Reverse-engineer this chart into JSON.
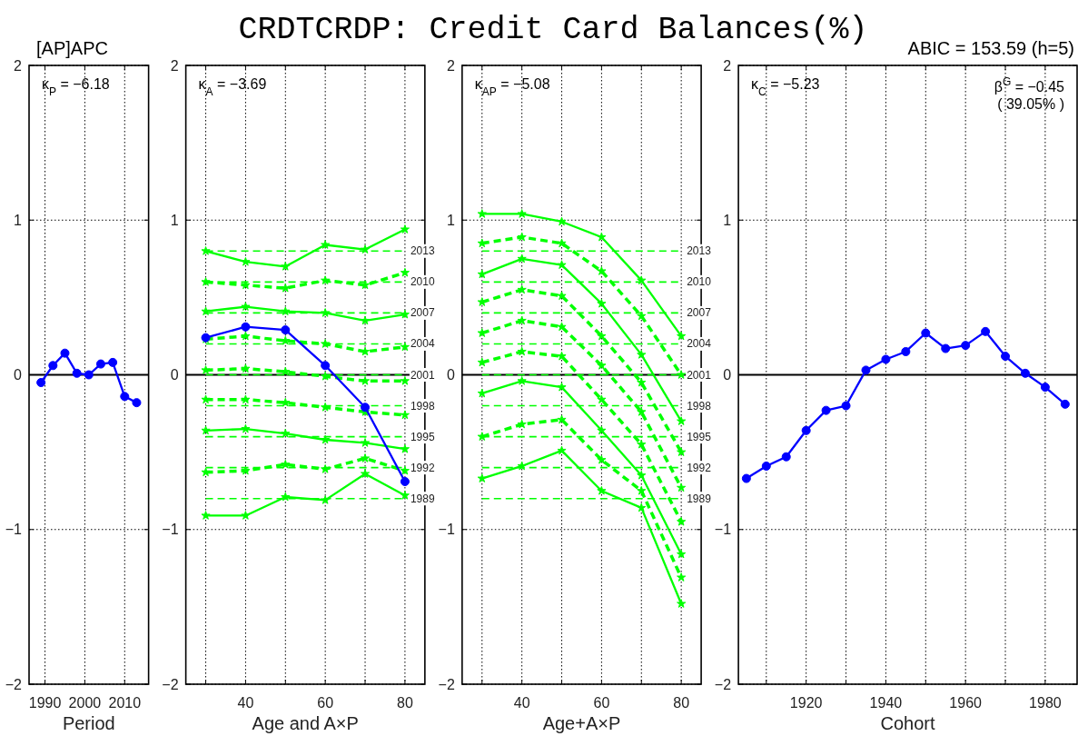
{
  "chart_data": [
    {
      "type": "line",
      "subtitle": "[AP]APC",
      "xlabel": "Period",
      "x": [
        1989,
        1992,
        1995,
        1998,
        2001,
        2004,
        2007,
        2010,
        2013
      ],
      "series": [
        {
          "color": "#0000ff",
          "values": [
            -0.05,
            0.06,
            0.14,
            0.01,
            0,
            0.07,
            0.08,
            -0.14,
            -0.18
          ]
        }
      ],
      "marker": "circle",
      "xlim": [
        1986,
        2016
      ],
      "ylim": [
        -2,
        2
      ],
      "xticks": [
        1990,
        2000,
        2010
      ],
      "yticks": [
        -2,
        -1,
        0,
        1,
        2
      ],
      "grid": true,
      "annotations": [
        "κ$_{P}$ = −6.18"
      ],
      "ref_lines": [
        {
          "axis": "y",
          "value": 0,
          "color": "#000000",
          "line_style": "solid"
        }
      ]
    },
    {
      "type": "line",
      "xlabel": "Age and A×P",
      "x": [
        30,
        40,
        50,
        60,
        70,
        80
      ],
      "series": [
        {
          "name": "2013",
          "color": "#00ff00",
          "line_style": "dashed",
          "values": [
            0.8,
            0.8,
            0.8,
            0.8,
            0.8,
            0.8
          ]
        },
        {
          "name": "2010",
          "color": "#00ff00",
          "line_style": "dashed",
          "values": [
            0.6,
            0.6,
            0.6,
            0.6,
            0.6,
            0.6
          ]
        },
        {
          "name": "2007",
          "color": "#00ff00",
          "line_style": "dashed",
          "values": [
            0.4,
            0.4,
            0.4,
            0.4,
            0.4,
            0.4
          ]
        },
        {
          "name": "2004",
          "color": "#00ff00",
          "line_style": "dashed",
          "values": [
            0.2,
            0.2,
            0.2,
            0.2,
            0.2,
            0.2
          ]
        },
        {
          "name": "2001",
          "color": "#00ff00",
          "line_style": "dashed",
          "values": [
            0,
            0,
            0,
            0,
            0,
            0
          ]
        },
        {
          "name": "1998",
          "color": "#00ff00",
          "line_style": "dashed",
          "values": [
            -0.2,
            -0.2,
            -0.2,
            -0.2,
            -0.2,
            -0.2
          ]
        },
        {
          "name": "1995",
          "color": "#00ff00",
          "line_style": "dashed",
          "values": [
            -0.4,
            -0.4,
            -0.4,
            -0.4,
            -0.4,
            -0.4
          ]
        },
        {
          "name": "1992",
          "color": "#00ff00",
          "line_style": "dashed",
          "values": [
            -0.6,
            -0.6,
            -0.6,
            -0.6,
            -0.6,
            -0.6
          ]
        },
        {
          "name": "1989",
          "color": "#00ff00",
          "line_style": "dashed",
          "values": [
            -0.8,
            -0.8,
            -0.8,
            -0.8,
            -0.8,
            -0.8
          ]
        },
        {
          "color": "#00ff00",
          "line_style": "solid",
          "marker": "star",
          "values": [
            0.8,
            0.73,
            0.7,
            0.84,
            0.81,
            0.94
          ]
        },
        {
          "color": "#00ff00",
          "line_style": "dashed",
          "marker": "star",
          "values": [
            0.6,
            0.58,
            0.56,
            0.61,
            0.58,
            0.66
          ]
        },
        {
          "color": "#00ff00",
          "line_style": "solid",
          "marker": "star",
          "values": [
            0.41,
            0.44,
            0.41,
            0.4,
            0.35,
            0.39
          ]
        },
        {
          "color": "#00ff00",
          "line_style": "dashed",
          "marker": "star",
          "values": [
            0.23,
            0.25,
            0.22,
            0.2,
            0.15,
            0.18
          ]
        },
        {
          "color": "#00ff00",
          "line_style": "dashed",
          "marker": "star",
          "values": [
            0.03,
            0.04,
            0.02,
            -0.01,
            -0.04,
            -0.04
          ]
        },
        {
          "color": "#00ff00",
          "line_style": "dashed",
          "marker": "star",
          "values": [
            -0.16,
            -0.16,
            -0.18,
            -0.21,
            -0.24,
            -0.26
          ]
        },
        {
          "color": "#00ff00",
          "line_style": "solid",
          "marker": "star",
          "values": [
            -0.36,
            -0.35,
            -0.38,
            -0.42,
            -0.44,
            -0.48
          ]
        },
        {
          "color": "#00ff00",
          "line_style": "dashed",
          "marker": "star",
          "values": [
            -0.63,
            -0.62,
            -0.58,
            -0.61,
            -0.54,
            -0.62
          ]
        },
        {
          "color": "#00ff00",
          "line_style": "solid",
          "marker": "star",
          "values": [
            -0.91,
            -0.91,
            -0.79,
            -0.81,
            -0.64,
            -0.78
          ]
        },
        {
          "color": "#0000ff",
          "line_style": "solid",
          "marker": "circle",
          "values": [
            0.24,
            0.31,
            0.29,
            0.06,
            -0.21,
            -0.69
          ]
        }
      ],
      "xlim": [
        25,
        85
      ],
      "ylim": [
        -2,
        2
      ],
      "xticks": [
        {
          "value": 30,
          "label": null
        },
        40,
        {
          "value": 50,
          "label": null
        },
        60,
        {
          "value": 70,
          "label": null
        },
        80
      ],
      "yticks": [
        -2,
        -1,
        0,
        1,
        2
      ],
      "grid": true,
      "annotations": [
        "κ$_{A}$ = −3.69"
      ],
      "ref_lines": [
        {
          "axis": "y",
          "value": 0,
          "color": "#000000",
          "line_style": "solid"
        }
      ]
    },
    {
      "type": "line",
      "title": "CRDTCRDP: Credit Card Balances(%)",
      "xlabel": "Age+A×P",
      "x": [
        30,
        40,
        50,
        60,
        70,
        80
      ],
      "series": [
        {
          "name": "2013",
          "color": "#00ff00",
          "line_style": "dashed",
          "values": [
            0.8,
            0.8,
            0.8,
            0.8,
            0.8,
            0.8
          ]
        },
        {
          "name": "2010",
          "color": "#00ff00",
          "line_style": "dashed",
          "values": [
            0.6,
            0.6,
            0.6,
            0.6,
            0.6,
            0.6
          ]
        },
        {
          "name": "2007",
          "color": "#00ff00",
          "line_style": "dashed",
          "values": [
            0.4,
            0.4,
            0.4,
            0.4,
            0.4,
            0.4
          ]
        },
        {
          "name": "2004",
          "color": "#00ff00",
          "line_style": "dashed",
          "values": [
            0.2,
            0.2,
            0.2,
            0.2,
            0.2,
            0.2
          ]
        },
        {
          "name": "2001",
          "color": "#00ff00",
          "line_style": "dashed",
          "values": [
            0,
            0,
            0,
            0,
            0,
            0
          ]
        },
        {
          "name": "1998",
          "color": "#00ff00",
          "line_style": "dashed",
          "values": [
            -0.2,
            -0.2,
            -0.2,
            -0.2,
            -0.2,
            -0.2
          ]
        },
        {
          "name": "1995",
          "color": "#00ff00",
          "line_style": "dashed",
          "values": [
            -0.4,
            -0.4,
            -0.4,
            -0.4,
            -0.4,
            -0.4
          ]
        },
        {
          "name": "1992",
          "color": "#00ff00",
          "line_style": "dashed",
          "values": [
            -0.6,
            -0.6,
            -0.6,
            -0.6,
            -0.6,
            -0.6
          ]
        },
        {
          "name": "1989",
          "color": "#00ff00",
          "line_style": "dashed",
          "values": [
            -0.8,
            -0.8,
            -0.8,
            -0.8,
            -0.8,
            -0.8
          ]
        },
        {
          "color": "#00ff00",
          "line_style": "solid",
          "marker": "star",
          "values": [
            1.04,
            1.04,
            0.99,
            0.89,
            0.61,
            0.25
          ]
        },
        {
          "color": "#00ff00",
          "line_style": "dashed",
          "marker": "star",
          "values": [
            0.85,
            0.89,
            0.85,
            0.67,
            0.38,
            0
          ]
        },
        {
          "color": "#00ff00",
          "line_style": "solid",
          "marker": "star",
          "values": [
            0.65,
            0.75,
            0.71,
            0.46,
            0.13,
            -0.3
          ]
        },
        {
          "color": "#00ff00",
          "line_style": "dashed",
          "marker": "star",
          "values": [
            0.47,
            0.55,
            0.51,
            0.25,
            -0.05,
            -0.5
          ]
        },
        {
          "color": "#00ff00",
          "line_style": "dashed",
          "marker": "star",
          "values": [
            0.27,
            0.35,
            0.31,
            0.06,
            -0.24,
            -0.73
          ]
        },
        {
          "color": "#00ff00",
          "line_style": "dashed",
          "marker": "star",
          "values": [
            0.08,
            0.15,
            0.12,
            -0.16,
            -0.45,
            -0.95
          ]
        },
        {
          "color": "#00ff00",
          "line_style": "solid",
          "marker": "star",
          "values": [
            -0.12,
            -0.04,
            -0.08,
            -0.36,
            -0.65,
            -1.16
          ]
        },
        {
          "color": "#00ff00",
          "line_style": "dashed",
          "marker": "star",
          "values": [
            -0.4,
            -0.32,
            -0.29,
            -0.55,
            -0.75,
            -1.31
          ]
        },
        {
          "color": "#00ff00",
          "line_style": "solid",
          "marker": "star",
          "values": [
            -0.67,
            -0.59,
            -0.49,
            -0.75,
            -0.86,
            -1.48
          ]
        }
      ],
      "xlim": [
        25,
        85
      ],
      "ylim": [
        -2,
        2
      ],
      "xticks": [
        {
          "value": 30,
          "label": null
        },
        40,
        {
          "value": 50,
          "label": null
        },
        60,
        {
          "value": 70,
          "label": null
        },
        80
      ],
      "yticks": [
        -2,
        -1,
        0,
        1,
        2
      ],
      "grid": true,
      "annotations": [
        "κ$_{AP}$ = −5.08"
      ],
      "ref_lines": [
        {
          "axis": "y",
          "value": 0,
          "color": "#000000",
          "line_style": "solid"
        }
      ]
    },
    {
      "type": "line",
      "subtitle": "ABIC = 153.59 (h=5)",
      "xlabel": "Cohort",
      "x": [
        1905,
        1910,
        1915,
        1920,
        1925,
        1930,
        1935,
        1940,
        1945,
        1950,
        1955,
        1960,
        1965,
        1970,
        1975,
        1980,
        1985
      ],
      "series": [
        {
          "color": "#0000ff",
          "values": [
            -0.67,
            -0.59,
            -0.53,
            -0.36,
            -0.23,
            -0.2,
            0.03,
            0.1,
            0.15,
            0.27,
            0.17,
            0.19,
            0.28,
            0.12,
            0.01,
            -0.08,
            -0.19
          ]
        }
      ],
      "marker": "circle",
      "xlim": [
        1903,
        1988
      ],
      "ylim": [
        -2,
        2
      ],
      "xticks": [
        {
          "value": 1910,
          "label": null
        },
        1920,
        {
          "value": 1930,
          "label": null
        },
        1940,
        {
          "value": 1950,
          "label": null
        },
        1960,
        {
          "value": 1970,
          "label": null
        },
        1980
      ],
      "yticks": [
        -2,
        -1,
        0,
        1,
        2
      ],
      "grid": true,
      "annotations": [
        "κ$_{C}$ = −5.23",
        "β$^{G}$ = −0.45",
        "( 39.05% )"
      ],
      "ref_lines": [
        {
          "axis": "y",
          "value": 0,
          "color": "#000000",
          "line_style": "solid"
        }
      ]
    }
  ]
}
